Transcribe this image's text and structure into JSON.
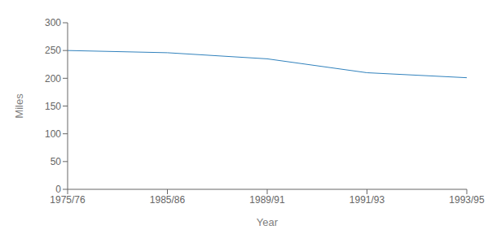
{
  "chart_data": {
    "type": "line",
    "categories": [
      "1975/76",
      "1985/86",
      "1989/91",
      "1991/93",
      "1993/95"
    ],
    "values": [
      250,
      246,
      235,
      210,
      201
    ],
    "xlabel": "Year",
    "ylabel": "Miles",
    "ylim": [
      0,
      300
    ],
    "yticks": [
      0,
      50,
      100,
      150,
      200,
      250,
      300
    ],
    "grid": false
  }
}
